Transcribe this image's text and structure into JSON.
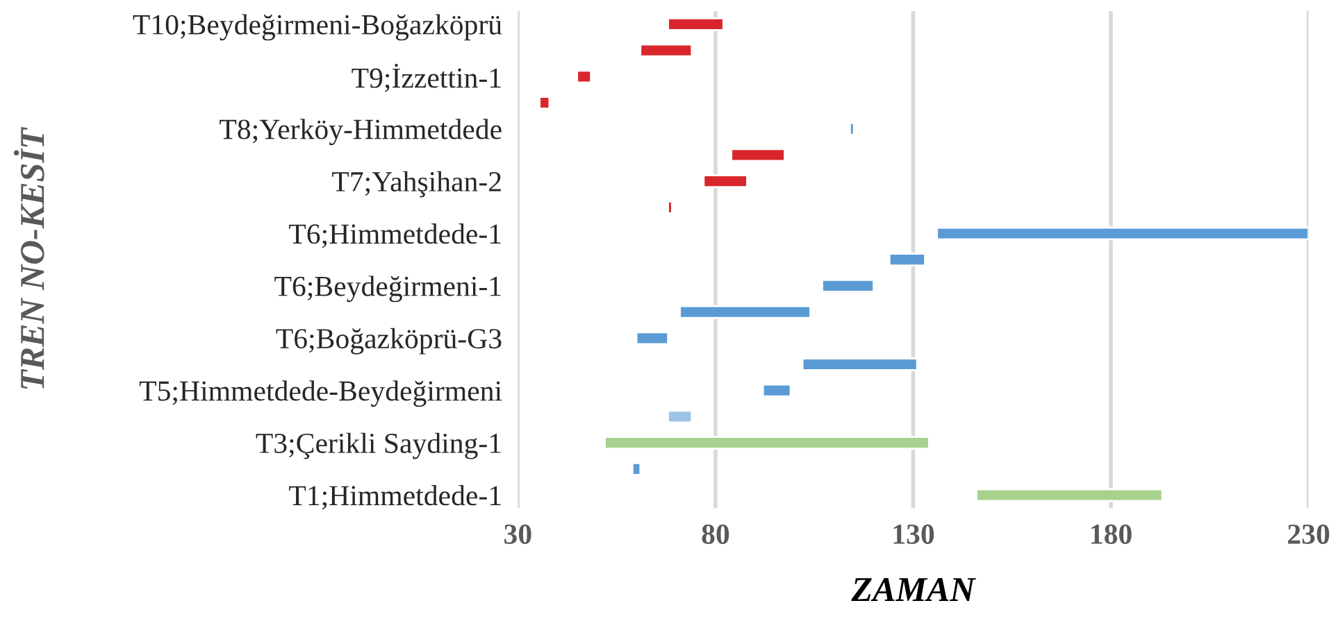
{
  "chart_data": {
    "type": "bar",
    "orientation": "horizontal",
    "xlabel": "ZAMAN",
    "ylabel": "TREN NO-KESİT",
    "categories": [
      "T10;Beydeğirmeni-Boğazköprü",
      null,
      "T9;İzzettin-1",
      null,
      "T8;Yerköy-Himmetdede",
      null,
      "T7;Yahşihan-2",
      null,
      "T6;Himmetdede-1",
      null,
      "T6;Beydeğirmeni-1",
      null,
      "T6;Boğazköprü-G3",
      null,
      "T5;Himmetdede-Beydeğirmeni",
      null,
      "T3;Çerikli Sayding-1",
      null,
      "T1;Himmetdede-1"
    ],
    "base": [
      68,
      61,
      45,
      35.5,
      114,
      84,
      77,
      68,
      136,
      124,
      107,
      71,
      60,
      102,
      92,
      68,
      52,
      59,
      146
    ],
    "values": [
      14,
      13,
      3.5,
      2.5,
      1,
      13.5,
      11,
      1,
      94,
      9,
      13,
      33,
      8,
      29,
      7,
      6,
      82,
      2,
      47
    ],
    "colors": [
      "#d9262c",
      "#d9262c",
      "#d9262c",
      "#d9262c",
      "#5b9bd5",
      "#d9262c",
      "#d9262c",
      "#d9262c",
      "#5b9bd5",
      "#5b9bd5",
      "#5b9bd5",
      "#5b9bd5",
      "#5b9bd5",
      "#5b9bd5",
      "#5b9bd5",
      "#9dc3e6",
      "#a9d18e",
      "#5b9bd5",
      "#a9d18e"
    ],
    "xlim": [
      30,
      230
    ],
    "xticks": [
      30,
      80,
      130,
      180,
      230
    ],
    "grid": "x",
    "legend": false
  }
}
